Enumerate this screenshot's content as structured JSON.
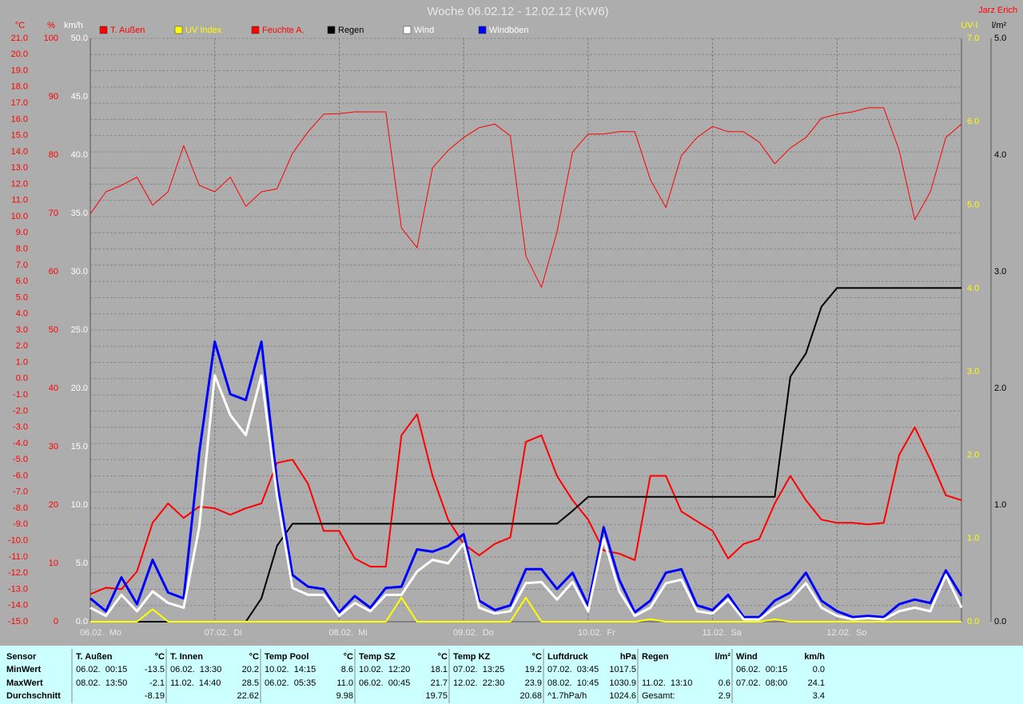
{
  "chart_data": {
    "type": "line",
    "title": "Woche 06.02.12 - 12.02.12 (KW6)",
    "author": "Jarz Erich",
    "ylabel": "°C",
    "y2label": "%",
    "y3label": "km/h",
    "y4label": "UV-I",
    "y5label": "l/m²",
    "ylim": [
      -15,
      21
    ],
    "yticks": [
      {
        "value": 21,
        "label": "21.0"
      },
      {
        "value": 20,
        "label": "20.0"
      },
      {
        "value": 19,
        "label": "19.0"
      },
      {
        "value": 18,
        "label": "18.0"
      },
      {
        "value": 17,
        "label": "17.0"
      },
      {
        "value": 16,
        "label": "16.0"
      },
      {
        "value": 15,
        "label": "15.0"
      },
      {
        "value": 14,
        "label": "14.0"
      },
      {
        "value": 13,
        "label": "13.0"
      },
      {
        "value": 12,
        "label": "12.0"
      },
      {
        "value": 11,
        "label": "11.0"
      },
      {
        "value": 10,
        "label": "10.0"
      },
      {
        "value": 9,
        "label": "9.0"
      },
      {
        "value": 8,
        "label": "8.0"
      },
      {
        "value": 7,
        "label": "7.0"
      },
      {
        "value": 6,
        "label": "6.0"
      },
      {
        "value": 5,
        "label": "5.0"
      },
      {
        "value": 4,
        "label": "4.0"
      },
      {
        "value": 3,
        "label": "3.0"
      },
      {
        "value": 2,
        "label": "2.0"
      },
      {
        "value": 1,
        "label": "1.0"
      },
      {
        "value": 0,
        "label": "0.0"
      },
      {
        "value": -1,
        "label": "-1.0"
      },
      {
        "value": -2,
        "label": "-2.0"
      },
      {
        "value": -3,
        "label": "-3.0"
      },
      {
        "value": -4,
        "label": "-4.0"
      },
      {
        "value": -5,
        "label": "-5.0"
      },
      {
        "value": -6,
        "label": "-6.0"
      },
      {
        "value": -7,
        "label": "-7.0"
      },
      {
        "value": -8,
        "label": "-8.0"
      },
      {
        "value": -9,
        "label": "-9.0"
      },
      {
        "value": -10,
        "label": "-10.0"
      },
      {
        "value": -11,
        "label": "-11.0"
      },
      {
        "value": -12,
        "label": "-12.0"
      },
      {
        "value": -13,
        "label": "-13.0"
      },
      {
        "value": -14,
        "label": "-14.0"
      },
      {
        "value": -15,
        "label": "-15.0"
      }
    ],
    "y2lim": [
      0,
      100
    ],
    "y2ticks": [
      0,
      10,
      20,
      30,
      40,
      50,
      60,
      70,
      80,
      90,
      100
    ],
    "y3lim": [
      0,
      50
    ],
    "y3ticks": [
      {
        "value": 0,
        "label": "0.0"
      },
      {
        "value": 5,
        "label": "5.0"
      },
      {
        "value": 10,
        "label": "10.0"
      },
      {
        "value": 15,
        "label": "15.0"
      },
      {
        "value": 20,
        "label": "20.0"
      },
      {
        "value": 25,
        "label": "25.0"
      },
      {
        "value": 30,
        "label": "30.0"
      },
      {
        "value": 35,
        "label": "35.0"
      },
      {
        "value": 40,
        "label": "40.0"
      },
      {
        "value": 45,
        "label": "45.0"
      },
      {
        "value": 50,
        "label": "50.0"
      }
    ],
    "y4lim": [
      0,
      7
    ],
    "y4ticks": [
      {
        "value": 0,
        "label": "0.0"
      },
      {
        "value": 1,
        "label": "1.0"
      },
      {
        "value": 2,
        "label": "2.0"
      },
      {
        "value": 3,
        "label": "3.0"
      },
      {
        "value": 4,
        "label": "4.0"
      },
      {
        "value": 5,
        "label": "5.0"
      },
      {
        "value": 6,
        "label": "6.0"
      },
      {
        "value": 7,
        "label": "7.0"
      }
    ],
    "y5lim": [
      0,
      5
    ],
    "y5ticks": [
      {
        "value": 0,
        "label": "0.0"
      },
      {
        "value": 1,
        "label": "1.0"
      },
      {
        "value": 2,
        "label": "2.0"
      },
      {
        "value": 3,
        "label": "3.0"
      },
      {
        "value": 4,
        "label": "4.0"
      },
      {
        "value": 5,
        "label": "5.0"
      }
    ],
    "grid": true,
    "categories": [
      "06.02.  Mo",
      null,
      null,
      null,
      null,
      null,
      null,
      null,
      "07.02.  Di",
      null,
      null,
      null,
      null,
      null,
      null,
      null,
      "08.02.  Mi",
      null,
      null,
      null,
      null,
      null,
      null,
      null,
      "09.02.  Do",
      null,
      null,
      null,
      null,
      null,
      null,
      null,
      "10.02.  Fr",
      null,
      null,
      null,
      null,
      null,
      null,
      null,
      "11.02.  Sa",
      null,
      null,
      null,
      null,
      null,
      null,
      null,
      "12.02.  So",
      null,
      null,
      null,
      null,
      null,
      null,
      null,
      null
    ],
    "series": [
      {
        "name": "T. Außen",
        "color": "#ff0000",
        "legend_text_color": "#ff0000",
        "axis": "y",
        "values": [
          -13.3,
          -12.9,
          -13.0,
          -11.9,
          -8.9,
          -7.7,
          -8.6,
          -7.9,
          -8.0,
          -8.4,
          -8.0,
          -7.7,
          -5.2,
          -5.0,
          -6.5,
          -9.4,
          -9.4,
          -11.1,
          -11.6,
          -11.6,
          -3.5,
          -2.2,
          -6.0,
          -8.7,
          -10.2,
          -10.9,
          -10.2,
          -9.8,
          -3.9,
          -3.5,
          -6.0,
          -7.5,
          -8.7,
          -10.6,
          -10.8,
          -11.2,
          -6.0,
          -6.0,
          -8.2,
          -8.8,
          -9.4,
          -11.1,
          -10.2,
          -9.9,
          -7.7,
          -6.0,
          -7.5,
          -8.7,
          -8.9,
          -8.9,
          -9.0,
          -8.9,
          -4.7,
          -3.0,
          -5.0,
          -7.2,
          -7.5
        ]
      },
      {
        "name": "UV Index",
        "color": "#ffff00",
        "legend_text_color": "#ffff00",
        "axis": "y4",
        "values": [
          0,
          0,
          0,
          0,
          0.15,
          0,
          0,
          0,
          0,
          0,
          0,
          0,
          0,
          0,
          0,
          0,
          0,
          0,
          0,
          0,
          0.29,
          0,
          0,
          0,
          0,
          0,
          0,
          0,
          0.29,
          0,
          0,
          0,
          0,
          0,
          0,
          0,
          0.03,
          0,
          0,
          0,
          0,
          0,
          0,
          0,
          0.03,
          0,
          0,
          0,
          0,
          0,
          0,
          0,
          0,
          0,
          0,
          0,
          0
        ]
      },
      {
        "name": "Feuchte A.",
        "color": "#ff0000",
        "legend_text_color": "#ff0000",
        "axis": "y2",
        "values": [
          69.9,
          73.7,
          74.8,
          76.2,
          71.4,
          73.7,
          81.6,
          74.8,
          73.7,
          76.2,
          71.2,
          73.7,
          74.2,
          80.3,
          84.0,
          87.0,
          87.1,
          87.4,
          87.4,
          87.4,
          67.5,
          64.1,
          77.8,
          80.8,
          83.0,
          84.7,
          85.3,
          83.3,
          62.7,
          57.3,
          66.8,
          80.5,
          83.6,
          83.6,
          84.0,
          84.0,
          75.8,
          71.0,
          79.9,
          83.0,
          84.9,
          84.0,
          84.0,
          82.2,
          78.5,
          81.2,
          83.0,
          86.3,
          87.0,
          87.4,
          88.1,
          88.1,
          80.8,
          68.9,
          73.7,
          83.0,
          85.3
        ]
      },
      {
        "name": "Regen",
        "color": "#000000",
        "legend_text_color": "#000000",
        "axis": "y5",
        "values": [
          0,
          0,
          0,
          0,
          0,
          0,
          0,
          0,
          0,
          0,
          0,
          0.2,
          0.65,
          0.84,
          0.84,
          0.84,
          0.84,
          0.84,
          0.84,
          0.84,
          0.84,
          0.84,
          0.84,
          0.84,
          0.84,
          0.84,
          0.84,
          0.84,
          0.84,
          0.84,
          0.84,
          0.95,
          1.07,
          1.07,
          1.07,
          1.07,
          1.07,
          1.07,
          1.07,
          1.07,
          1.07,
          1.07,
          1.07,
          1.07,
          1.07,
          2.1,
          2.3,
          2.7,
          2.86,
          2.86,
          2.86,
          2.86,
          2.86,
          2.86,
          2.86,
          2.86,
          2.86
        ]
      },
      {
        "name": "Wind",
        "color": "#ffffff",
        "legend_text_color": "#ffffff",
        "axis": "y3",
        "values": [
          1.2,
          0.5,
          2.3,
          0.9,
          2.6,
          1.6,
          1.2,
          8.1,
          21.1,
          17.7,
          16.0,
          21.1,
          10.8,
          2.9,
          2.3,
          2.3,
          0.5,
          1.6,
          0.9,
          2.3,
          2.3,
          4.3,
          5.3,
          5.0,
          6.7,
          1.2,
          0.7,
          0.9,
          3.3,
          3.4,
          1.9,
          3.4,
          0.9,
          7.1,
          2.6,
          0.5,
          1.2,
          3.3,
          3.6,
          0.9,
          0.7,
          1.9,
          0.2,
          0.2,
          1.2,
          1.9,
          3.3,
          1.2,
          0.5,
          0.2,
          0.3,
          0.2,
          0.9,
          1.2,
          0.9,
          4.0,
          1.2
        ]
      },
      {
        "name": "Windböen",
        "color": "#0000ff",
        "legend_text_color": "#ffffff",
        "axis": "y3",
        "values": [
          2.0,
          0.9,
          3.8,
          1.5,
          5.3,
          2.5,
          2.0,
          14.5,
          24.0,
          19.5,
          19.0,
          24.0,
          12.0,
          4.0,
          3.0,
          2.8,
          0.8,
          2.2,
          1.2,
          2.9,
          3.0,
          6.2,
          6.0,
          6.5,
          7.5,
          1.8,
          1.0,
          1.4,
          4.5,
          4.5,
          2.8,
          4.2,
          1.4,
          8.1,
          3.6,
          0.8,
          1.8,
          4.2,
          4.5,
          1.4,
          1.0,
          2.3,
          0.4,
          0.4,
          1.8,
          2.5,
          4.2,
          1.8,
          0.9,
          0.4,
          0.5,
          0.4,
          1.5,
          1.9,
          1.6,
          4.4,
          2.2
        ]
      }
    ]
  },
  "table": {
    "row_labels": [
      "Sensor",
      "MinWert",
      "MaxWert",
      "Durchschnitt"
    ],
    "groups": [
      {
        "name": "T. Außen",
        "unit": "°C",
        "min": {
          "time": "06.02.  00:15",
          "value": "-13.5"
        },
        "max": {
          "time": "08.02.  13:50",
          "value": "-2.1"
        },
        "avg": {
          "value": "-8.19"
        }
      },
      {
        "name": "T. Innen",
        "unit": "°C",
        "min": {
          "time": "06.02.  13:30",
          "value": "20.2"
        },
        "max": {
          "time": "11.02.  14:40",
          "value": "28.5"
        },
        "avg": {
          "value": "22.62"
        }
      },
      {
        "name": "Temp Pool",
        "unit": "°C",
        "min": {
          "time": "10.02.  14:15",
          "value": "8.6"
        },
        "max": {
          "time": "06.02.  05:35",
          "value": "11.0"
        },
        "avg": {
          "value": "9.98"
        }
      },
      {
        "name": "Temp SZ",
        "unit": "°C",
        "min": {
          "time": "10.02.  12:20",
          "value": "18.1"
        },
        "max": {
          "time": "06.02.  00:45",
          "value": "21.7"
        },
        "avg": {
          "value": "19.75"
        }
      },
      {
        "name": "Temp KZ",
        "unit": "°C",
        "min": {
          "time": "07.02.  13:25",
          "value": "19.2"
        },
        "max": {
          "time": "12.02.  22:30",
          "value": "23.9"
        },
        "avg": {
          "value": "20.68"
        }
      },
      {
        "name": "Luftdruck",
        "unit": "hPa",
        "min": {
          "time": "07.02.  03:45",
          "value": "1017.5"
        },
        "max": {
          "time": "08.02.  10:45",
          "value": "1030.9"
        },
        "avg": {
          "time": "^1.7hPa/h",
          "value": "1024.6"
        }
      },
      {
        "name": "Regen",
        "unit": "l/m²",
        "max": {
          "time": "11.02.  13:10",
          "value": "0.6"
        },
        "avg": {
          "time": "Gesamt:",
          "value": "2.9"
        }
      },
      {
        "name": "Wind",
        "unit": "km/h",
        "min": {
          "time": "06.02.  00:15",
          "value": "0.0"
        },
        "max": {
          "time": "07.02.  08:00",
          "value": "24.1"
        },
        "avg": {
          "value": "3.4"
        }
      }
    ]
  }
}
